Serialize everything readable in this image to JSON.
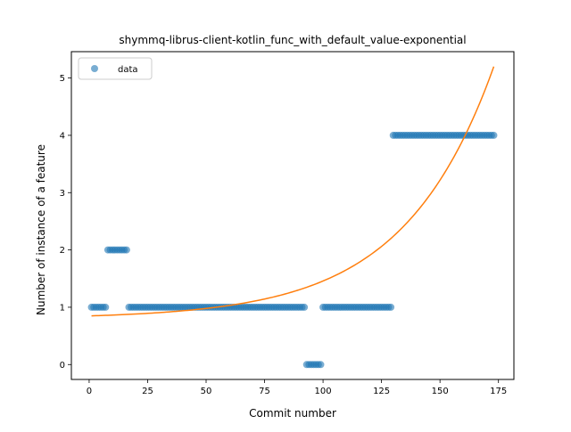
{
  "chart_data": {
    "type": "scatter",
    "title": "shymmq-librus-client-kotlin_func_with_default_value-exponential",
    "xlabel": "Commit number",
    "ylabel": "Number of instance of a feature",
    "xlim": [
      -7.6,
      181.6
    ],
    "ylim": [
      -0.26,
      5.46
    ],
    "xticks": [
      0,
      25,
      50,
      75,
      100,
      125,
      150,
      175
    ],
    "yticks": [
      0,
      1,
      2,
      3,
      4,
      5
    ],
    "grid": false,
    "legend_position": "upper left",
    "series": [
      {
        "name": "data",
        "kind": "points",
        "color": "#1f77b4",
        "segments": [
          {
            "x_start": 1,
            "x_end": 7,
            "y": 1
          },
          {
            "x_start": 8,
            "x_end": 16,
            "y": 2
          },
          {
            "x_start": 17,
            "x_end": 92,
            "y": 1
          },
          {
            "x_start": 93,
            "x_end": 99,
            "y": 0
          },
          {
            "x_start": 100,
            "x_end": 129,
            "y": 1
          },
          {
            "x_start": 130,
            "x_end": 173,
            "y": 4
          }
        ]
      },
      {
        "name": "",
        "kind": "line",
        "color": "#ff7f0e",
        "model": "exponential",
        "x_range": [
          1,
          173
        ],
        "points": [
          [
            1,
            0.85
          ],
          [
            25,
            0.88
          ],
          [
            50,
            0.97
          ],
          [
            75,
            1.13
          ],
          [
            100,
            1.42
          ],
          [
            125,
            2.15
          ],
          [
            150,
            3.4
          ],
          [
            173,
            5.2
          ]
        ]
      }
    ]
  }
}
